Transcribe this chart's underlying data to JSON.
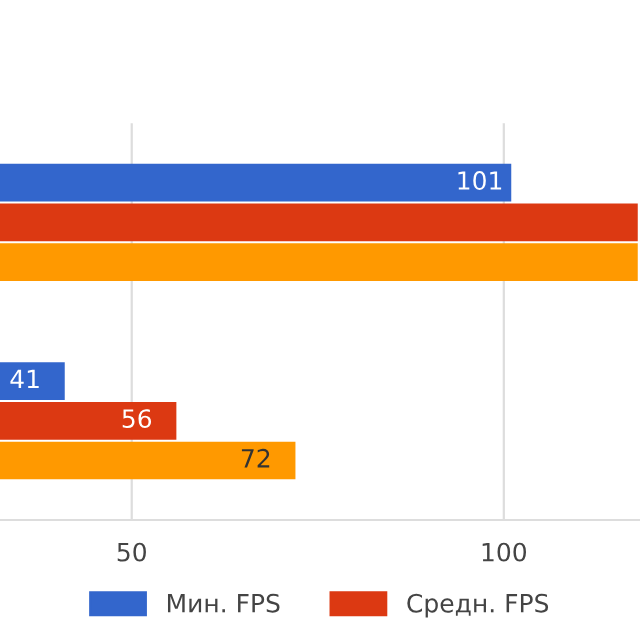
{
  "chart_data": {
    "type": "bar",
    "orientation": "horizontal",
    "categories": [
      null,
      null
    ],
    "series": [
      {
        "name": "Мин. FPS",
        "color": "#3366cc",
        "values": [
          101,
          41
        ],
        "value_labels": [
          "101",
          "41"
        ]
      },
      {
        "name": "Средн. FPS",
        "color": "#dc3912",
        "values": [
          118,
          56
        ],
        "value_labels": [
          null,
          "56"
        ]
      },
      {
        "color": "#ff9900",
        "values": [
          118,
          72
        ],
        "value_labels": [
          null,
          "72"
        ]
      }
    ],
    "xlim": [
      32.3,
      118.3
    ],
    "xticks": [
      50,
      100
    ],
    "grid": "x",
    "legend": "bottom"
  }
}
